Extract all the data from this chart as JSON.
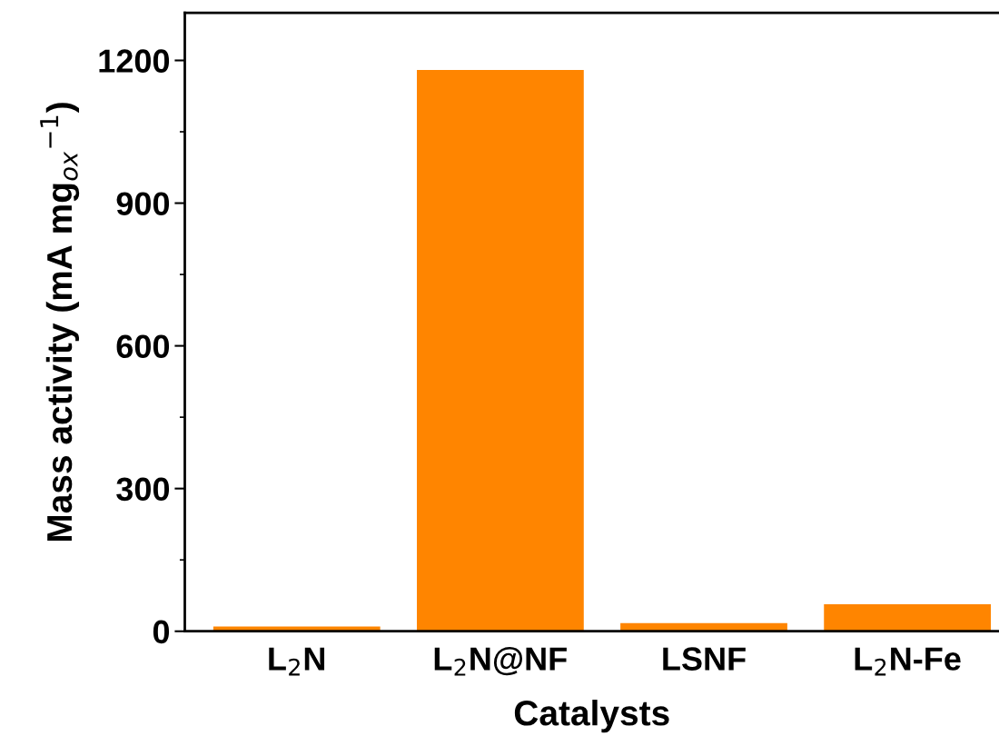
{
  "chart_data": {
    "type": "bar",
    "xlabel": "Catalysts",
    "ylabel": "Mass activity (mA mg$_{ox}$$^{−1}$)",
    "categories": [
      "L$_{2}$N",
      "L$_{2}$N@NF",
      "LSNF",
      "L$_{2}$N-Fe"
    ],
    "values": [
      10,
      1180,
      17,
      57
    ],
    "color": "#ff8500",
    "ylim": [
      0,
      1300
    ],
    "yticks": [
      0,
      300,
      600,
      900,
      1200
    ],
    "grid": false
  }
}
